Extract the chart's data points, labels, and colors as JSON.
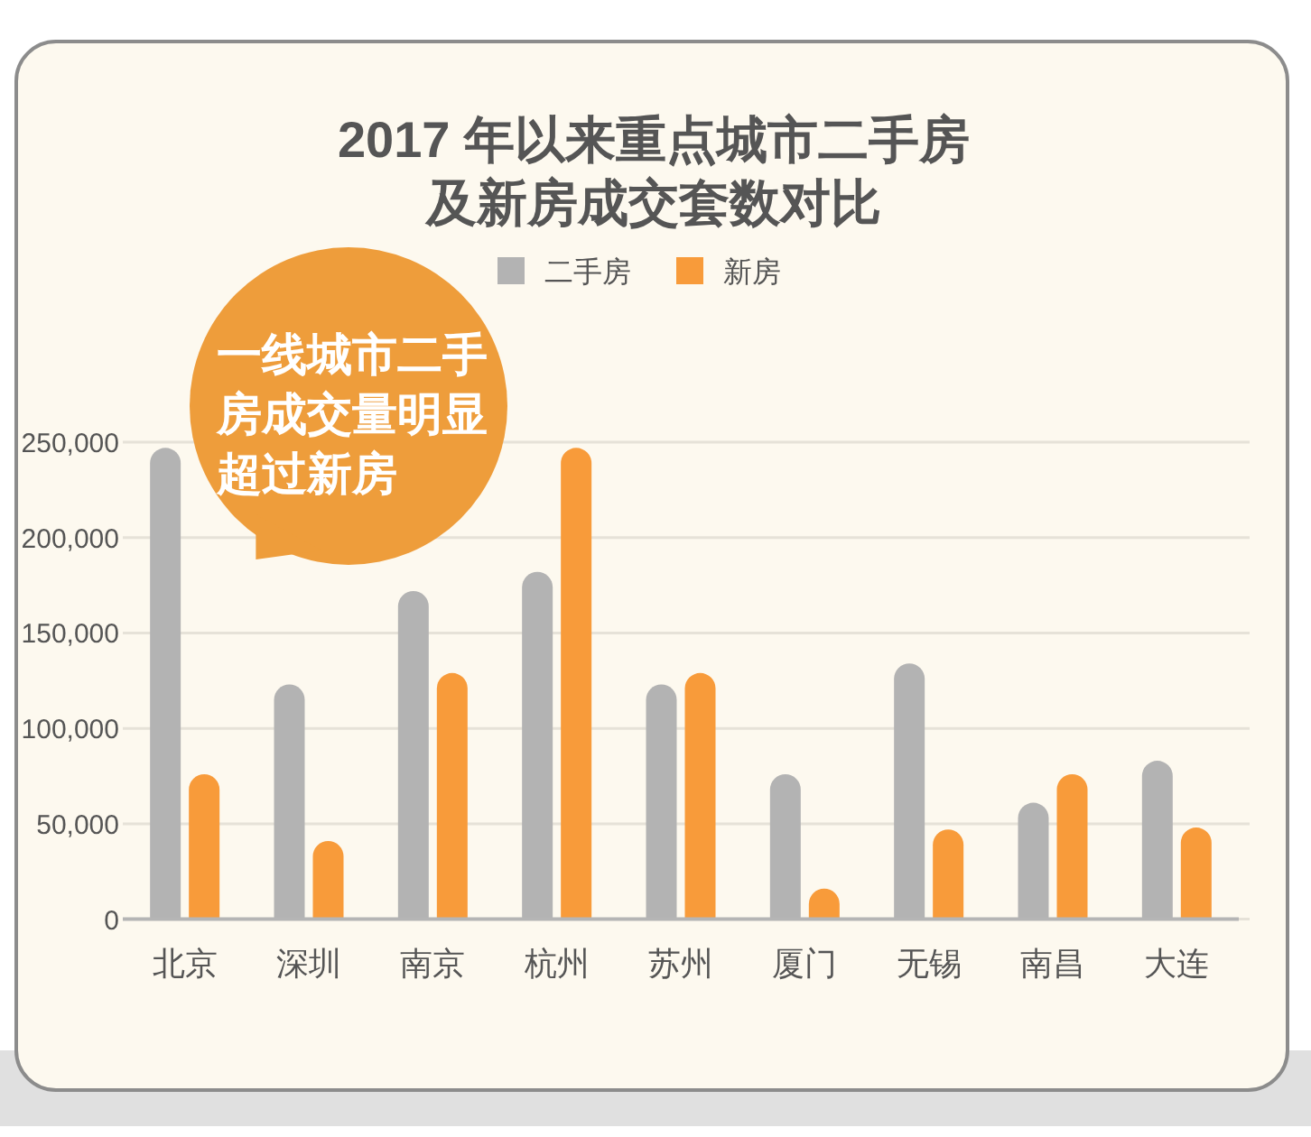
{
  "chart_data": {
    "type": "bar",
    "title": "2017 年以来重点城市二手房及新房成交套数对比",
    "categories": [
      "北京",
      "深圳",
      "南京",
      "杭州",
      "苏州",
      "厦门",
      "无锡",
      "南昌",
      "大连"
    ],
    "series": [
      {
        "name": "二手房",
        "color": "#b3b3b3",
        "values": [
          247000,
          123000,
          172000,
          182000,
          123000,
          76000,
          134000,
          61000,
          83000
        ]
      },
      {
        "name": "新房",
        "color": "#f89b3a",
        "values": [
          76000,
          41000,
          129000,
          247000,
          129000,
          16000,
          47000,
          76000,
          48000
        ]
      }
    ],
    "ylim": [
      0,
      250000
    ],
    "yticks": [
      0,
      {
        "value": 50000,
        "label": "50,000"
      },
      {
        "value": 100000,
        "label": "100,000"
      },
      {
        "value": 150000,
        "label": "150,000"
      },
      {
        "value": 200000,
        "label": "200,000"
      },
      {
        "value": 250000,
        "label": "250,000"
      }
    ],
    "grid": "y",
    "legend": "top",
    "annotations": [
      "一线城市二手房成交量明显超过新房"
    ]
  }
}
